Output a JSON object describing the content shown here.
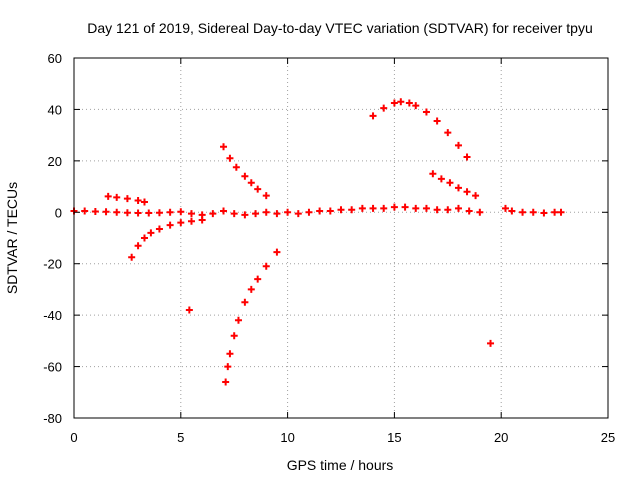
{
  "chart_data": {
    "type": "scatter",
    "title": "Day 121 of 2019, Sidereal Day-to-day VTEC variation (SDTVAR) for receiver tpyu",
    "xlabel": "GPS time / hours",
    "ylabel": "SDTVAR / TECUs",
    "xlim": [
      0,
      25
    ],
    "ylim": [
      -80,
      60
    ],
    "xticks": [
      0,
      5,
      10,
      15,
      20,
      25
    ],
    "yticks": [
      -80,
      -60,
      -40,
      -20,
      0,
      20,
      40,
      60
    ],
    "grid": true,
    "legend": "none",
    "marker": "plus",
    "color": "#ff0000",
    "series": [
      {
        "x": [
          0,
          0.5,
          1,
          1.5,
          2,
          2.5,
          3,
          3.5,
          4,
          4.5,
          5,
          5.5,
          6,
          6.5,
          7,
          7.5,
          8,
          8.5,
          9,
          9.5,
          10,
          10.5,
          11,
          11.5,
          12,
          12.5,
          13,
          13.5,
          14,
          14.5,
          15,
          15.5,
          16,
          16.5,
          17,
          17.5,
          18,
          18.5,
          19
        ],
        "y": [
          0.5,
          0.5,
          0.3,
          0.2,
          0.0,
          -0.2,
          -0.3,
          -0.3,
          -0.2,
          0.0,
          0.2,
          -0.5,
          -1.0,
          -0.5,
          0.5,
          -0.5,
          -1.0,
          -0.5,
          0.0,
          -0.5,
          0.0,
          -0.5,
          0.0,
          0.5,
          0.5,
          1.0,
          1.0,
          1.5,
          1.5,
          1.5,
          2.0,
          2.0,
          1.5,
          1.5,
          1.0,
          1.0,
          1.5,
          0.5,
          0.0
        ]
      },
      {
        "x": [
          1.6,
          2.0,
          2.5,
          3.0,
          3.3
        ],
        "y": [
          6.2,
          5.8,
          5.3,
          4.6,
          4.0
        ]
      },
      {
        "x": [
          2.7,
          3.0,
          3.3,
          3.6,
          4.0,
          4.5,
          5.0,
          5.5,
          6.0
        ],
        "y": [
          -17.5,
          -13,
          -10,
          -8,
          -6.5,
          -5,
          -4,
          -3.5,
          -3
        ]
      },
      {
        "x": [
          7.0,
          7.3,
          7.6,
          8.0,
          8.3,
          8.6,
          9.0
        ],
        "y": [
          25.5,
          21,
          17.5,
          14,
          11.5,
          9,
          6.5
        ]
      },
      {
        "x": [
          7.1,
          7.2,
          7.3,
          7.5,
          7.7,
          8.0,
          8.3,
          8.6,
          9.0,
          9.5
        ],
        "y": [
          -66,
          -60,
          -55,
          -48,
          -42,
          -35,
          -30,
          -26,
          -21,
          -15.5
        ]
      },
      {
        "x": [
          14.0,
          14.5,
          15.0,
          15.3,
          15.7,
          16.0,
          16.5,
          17.0,
          17.5,
          18.0,
          18.4
        ],
        "y": [
          37.5,
          40.5,
          42.5,
          43.0,
          42.5,
          41.5,
          39,
          35.5,
          31,
          26,
          21.5
        ]
      },
      {
        "x": [
          16.8,
          17.2,
          17.6,
          18.0,
          18.4,
          18.8
        ],
        "y": [
          15,
          13,
          11.5,
          9.5,
          8,
          6.5
        ]
      },
      {
        "x": [
          20.2,
          20.5,
          21.0,
          21.5,
          22.0,
          22.5,
          22.8
        ],
        "y": [
          1.5,
          0.5,
          0.0,
          0.0,
          -0.3,
          0.0,
          0.0
        ]
      },
      {
        "x": [
          5.4
        ],
        "y": [
          -38
        ]
      },
      {
        "x": [
          19.5
        ],
        "y": [
          -51
        ]
      }
    ]
  }
}
